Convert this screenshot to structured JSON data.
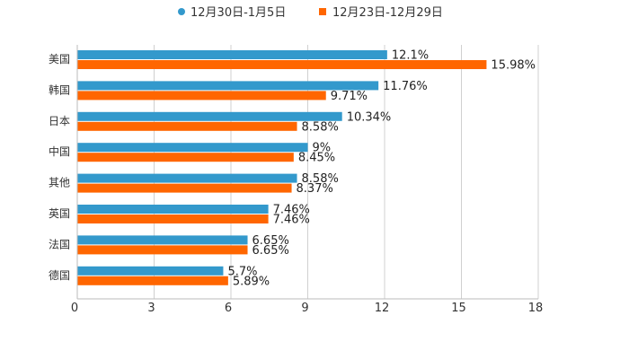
{
  "chart_data": {
    "type": "bar",
    "orientation": "horizontal",
    "categories": [
      "美国",
      "韩国",
      "日本",
      "中国",
      "其他",
      "英国",
      "法国",
      "德国"
    ],
    "series": [
      {
        "name": "12月30日-1月5日",
        "color": "#3399cc",
        "values": [
          12.1,
          11.76,
          10.34,
          9,
          8.58,
          7.46,
          6.65,
          5.7
        ],
        "labels": [
          "12.1%",
          "11.76%",
          "10.34%",
          "9%",
          "8.58%",
          "7.46%",
          "6.65%",
          "5.7%"
        ]
      },
      {
        "name": "12月23日-12月29日",
        "color": "#ff6600",
        "values": [
          15.98,
          9.71,
          8.58,
          8.45,
          8.37,
          7.46,
          6.65,
          5.89
        ],
        "labels": [
          "15.98%",
          "9.71%",
          "8.58%",
          "8.45%",
          "8.37%",
          "7.46%",
          "6.65%",
          "5.89%"
        ]
      }
    ],
    "xlim": [
      0,
      18
    ],
    "xticks": [
      "0",
      "3",
      "6",
      "9",
      "12",
      "15",
      "18"
    ],
    "title": "",
    "xlabel": "",
    "ylabel": "",
    "legend_position": "top-center",
    "grid": "vertical"
  }
}
